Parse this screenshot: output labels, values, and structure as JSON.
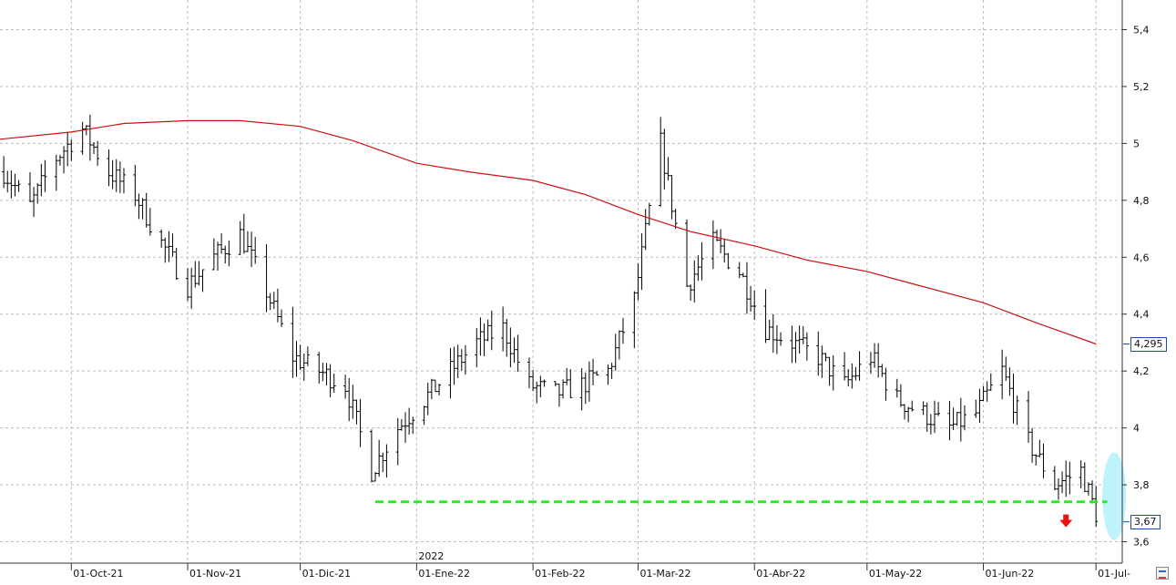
{
  "chart_data": {
    "type": "ohlc",
    "title": "",
    "xlabel": "",
    "ylabel": "",
    "ylim": [
      3.5,
      5.5
    ],
    "y_ticks": [
      "3,6",
      "3,8",
      "4",
      "4,2",
      "4,4",
      "4,6",
      "4,8",
      "5",
      "5,2",
      "5,4"
    ],
    "x_ticks": [
      {
        "label": "01-Oct-21",
        "date": "2021-10-01"
      },
      {
        "label": "01-Nov-21",
        "date": "2021-11-01"
      },
      {
        "label": "01-Dic-21",
        "date": "2021-12-01"
      },
      {
        "label": "01-Ene-22",
        "date": "2022-01-01"
      },
      {
        "label": "01-Feb-22",
        "date": "2022-02-01"
      },
      {
        "label": "01-Mar-22",
        "date": "2022-03-01"
      },
      {
        "label": "01-Abr-22",
        "date": "2022-04-01"
      },
      {
        "label": "01-May-22",
        "date": "2022-05-01"
      },
      {
        "label": "01-Jun-22",
        "date": "2022-06-01"
      },
      {
        "label": "01-Jul-",
        "date": "2022-07-01"
      }
    ],
    "year_marker": {
      "label": "2022",
      "date": "2022-01-01"
    },
    "grid": true,
    "price_series": [
      [
        "2021-09-13",
        4.9
      ],
      [
        "2021-09-20",
        4.78
      ],
      [
        "2021-09-27",
        4.95
      ],
      [
        "2021-10-04",
        5.05
      ],
      [
        "2021-10-11",
        4.9
      ],
      [
        "2021-10-18",
        4.82
      ],
      [
        "2021-10-25",
        4.65
      ],
      [
        "2021-11-01",
        4.5
      ],
      [
        "2021-11-08",
        4.6
      ],
      [
        "2021-11-15",
        4.68
      ],
      [
        "2021-11-22",
        4.48
      ],
      [
        "2021-11-29",
        4.25
      ],
      [
        "2021-12-06",
        4.2
      ],
      [
        "2021-12-13",
        4.15
      ],
      [
        "2021-12-20",
        3.85
      ],
      [
        "2021-12-27",
        4.0
      ],
      [
        "2022-01-03",
        4.1
      ],
      [
        "2022-01-10",
        4.2
      ],
      [
        "2022-01-17",
        4.3
      ],
      [
        "2022-01-24",
        4.35
      ],
      [
        "2022-01-31",
        4.15
      ],
      [
        "2022-02-07",
        4.12
      ],
      [
        "2022-02-14",
        4.15
      ],
      [
        "2022-02-21",
        4.2
      ],
      [
        "2022-02-28",
        4.45
      ],
      [
        "2022-03-07",
        5.0
      ],
      [
        "2022-03-14",
        4.5
      ],
      [
        "2022-03-21",
        4.65
      ],
      [
        "2022-03-28",
        4.55
      ],
      [
        "2022-04-04",
        4.35
      ],
      [
        "2022-04-11",
        4.3
      ],
      [
        "2022-04-18",
        4.25
      ],
      [
        "2022-04-25",
        4.15
      ],
      [
        "2022-05-02",
        4.25
      ],
      [
        "2022-05-09",
        4.1
      ],
      [
        "2022-05-16",
        4.05
      ],
      [
        "2022-05-23",
        4.0
      ],
      [
        "2022-05-30",
        4.05
      ],
      [
        "2022-06-06",
        4.2
      ],
      [
        "2022-06-13",
        3.95
      ],
      [
        "2022-06-20",
        3.8
      ],
      [
        "2022-06-27",
        3.85
      ],
      [
        "2022-07-01",
        3.7
      ]
    ],
    "series": [
      {
        "type": "line",
        "color": "#cc1111",
        "points": [
          [
            "2021-09-01",
            5.0
          ],
          [
            "2021-10-01",
            5.04
          ],
          [
            "2021-10-15",
            5.07
          ],
          [
            "2021-11-01",
            5.08
          ],
          [
            "2021-11-15",
            5.08
          ],
          [
            "2021-12-01",
            5.06
          ],
          [
            "2021-12-15",
            5.01
          ],
          [
            "2022-01-01",
            4.93
          ],
          [
            "2022-01-15",
            4.9
          ],
          [
            "2022-02-01",
            4.87
          ],
          [
            "2022-02-15",
            4.82
          ],
          [
            "2022-03-01",
            4.75
          ],
          [
            "2022-03-15",
            4.69
          ],
          [
            "2022-04-01",
            4.64
          ],
          [
            "2022-04-15",
            4.59
          ],
          [
            "2022-05-01",
            4.55
          ],
          [
            "2022-05-15",
            4.5
          ],
          [
            "2022-06-01",
            4.44
          ],
          [
            "2022-06-15",
            4.37
          ],
          [
            "2022-07-01",
            4.295
          ]
        ]
      },
      {
        "type": "hline",
        "color": "#22ee22",
        "style": "dashed",
        "y": 3.74,
        "x_start": "2021-12-21",
        "x_end": "2022-07-04"
      }
    ],
    "price_labels": [
      {
        "value": "4,295",
        "y": 4.295,
        "color": "#1a4ea8"
      },
      {
        "value": "3,67",
        "y": 3.67,
        "color": "#1a4ea8"
      }
    ],
    "annotations": [
      {
        "type": "ellipse",
        "color": "#bff3fb",
        "x": "2022-07-01",
        "y": 3.76
      },
      {
        "type": "arrow-down",
        "color": "#ee1111",
        "x": "2022-06-23",
        "y": 3.67
      }
    ]
  }
}
